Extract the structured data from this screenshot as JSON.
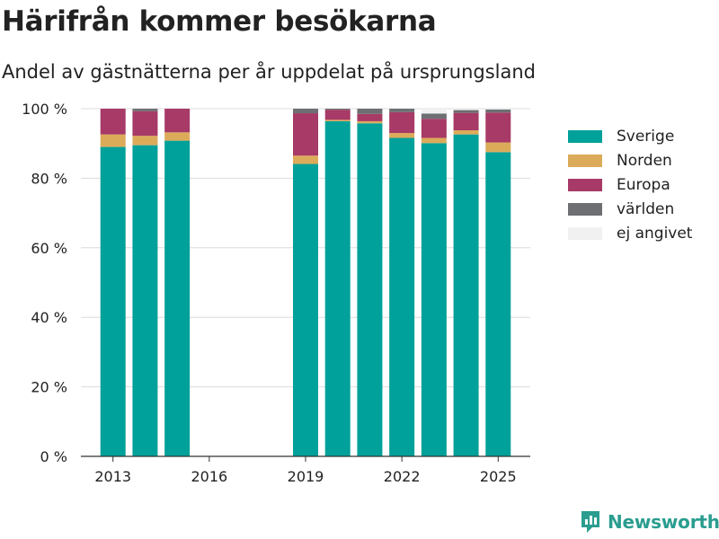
{
  "header": {
    "title": "Härifrån kommer besökarna",
    "subtitle": "Andel av gästnätterna per år uppdelat på ursprungsland"
  },
  "legend": [
    {
      "label": "Sverige",
      "color": "#00a19a"
    },
    {
      "label": "Norden",
      "color": "#dcab5a"
    },
    {
      "label": "Europa",
      "color": "#a73a66"
    },
    {
      "label": "världen",
      "color": "#6e6f72"
    },
    {
      "label": "ej angivet",
      "color": "#f1f1f1"
    }
  ],
  "brand": {
    "name": "Newsworthy",
    "color": "#2a9d8f"
  },
  "chart_data": {
    "type": "bar",
    "stacked": true,
    "x": [
      2013,
      2014,
      2015,
      2019,
      2020,
      2021,
      2022,
      2023,
      2024,
      2025
    ],
    "xticks": [
      2013,
      2016,
      2019,
      2022,
      2025
    ],
    "xlim": [
      2012,
      2026
    ],
    "ylim": [
      0,
      100
    ],
    "yticks": [
      0,
      20,
      40,
      60,
      80,
      100
    ],
    "ytick_labels": [
      "0 %",
      "20 %",
      "40 %",
      "60 %",
      "80 %",
      "100 %"
    ],
    "grid": true,
    "legend_position": "right",
    "series": [
      {
        "name": "Sverige",
        "color": "#00a19a",
        "values": [
          89,
          89.5,
          90.8,
          84.1,
          96.4,
          95.8,
          91.6,
          90.1,
          92.6,
          87.5
        ]
      },
      {
        "name": "Norden",
        "color": "#dcab5a",
        "values": [
          3.6,
          2.7,
          2.4,
          2.4,
          0.4,
          0.6,
          1.4,
          1.5,
          1.2,
          2.8
        ]
      },
      {
        "name": "Europa",
        "color": "#a73a66",
        "values": [
          7.4,
          7.1,
          6.8,
          12.2,
          2.9,
          2.1,
          6.0,
          5.5,
          5.0,
          8.6
        ]
      },
      {
        "name": "världen",
        "color": "#6e6f72",
        "values": [
          0,
          0.7,
          0,
          1.3,
          0.3,
          1.5,
          1.0,
          1.5,
          0.8,
          0.9
        ]
      },
      {
        "name": "ej angivet",
        "color": "#f1f1f1",
        "values": [
          0,
          0,
          0,
          0,
          0,
          0,
          0,
          1.4,
          0.4,
          0.2
        ]
      }
    ]
  }
}
